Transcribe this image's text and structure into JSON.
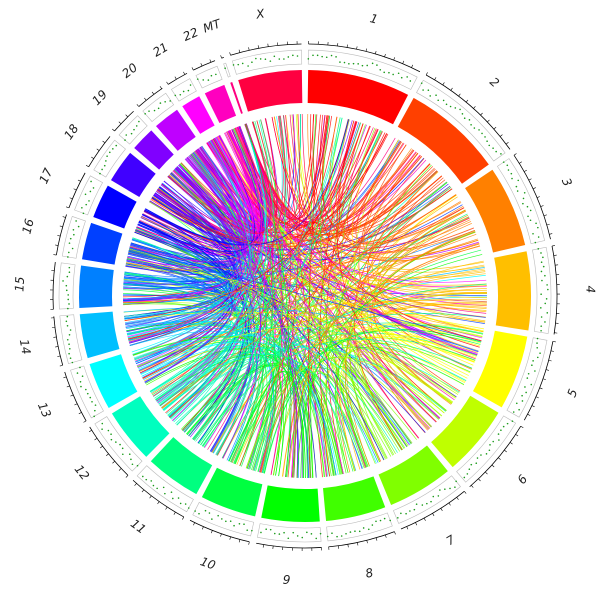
{
  "nodes": [
    {
      "label": "1",
      "size": 249,
      "color": "#ff0000"
    },
    {
      "label": "2",
      "size": 243,
      "color": "#ff4000"
    },
    {
      "label": "3",
      "size": 198,
      "color": "#ff8000"
    },
    {
      "label": "4",
      "size": 191,
      "color": "#ffbf00"
    },
    {
      "label": "5",
      "size": 181,
      "color": "#ffff00"
    },
    {
      "label": "6",
      "size": 171,
      "color": "#bfff00"
    },
    {
      "label": "7",
      "size": 159,
      "color": "#80ff00"
    },
    {
      "label": "8",
      "size": 146,
      "color": "#40ff00"
    },
    {
      "label": "9",
      "size": 141,
      "color": "#00ff00"
    },
    {
      "label": "10",
      "size": 136,
      "color": "#00ff40"
    },
    {
      "label": "11",
      "size": 135,
      "color": "#00ff80"
    },
    {
      "label": "12",
      "size": 133,
      "color": "#00ffbf"
    },
    {
      "label": "13",
      "size": 115,
      "color": "#00ffff"
    },
    {
      "label": "14",
      "size": 107,
      "color": "#00bfff"
    },
    {
      "label": "15",
      "size": 102,
      "color": "#0080ff"
    },
    {
      "label": "16",
      "size": 90,
      "color": "#0040ff"
    },
    {
      "label": "17",
      "size": 83,
      "color": "#0000ff"
    },
    {
      "label": "18",
      "size": 80,
      "color": "#4000ff"
    },
    {
      "label": "19",
      "size": 59,
      "color": "#8000ff"
    },
    {
      "label": "20",
      "size": 64,
      "color": "#bf00ff"
    },
    {
      "label": "21",
      "size": 47,
      "color": "#ff00ff"
    },
    {
      "label": "22",
      "size": 51,
      "color": "#ff00bf"
    },
    {
      "label": "MT",
      "size": 5,
      "color": "#ff0080"
    },
    {
      "label": "X",
      "size": 155,
      "color": "#ff0040"
    }
  ]
}
